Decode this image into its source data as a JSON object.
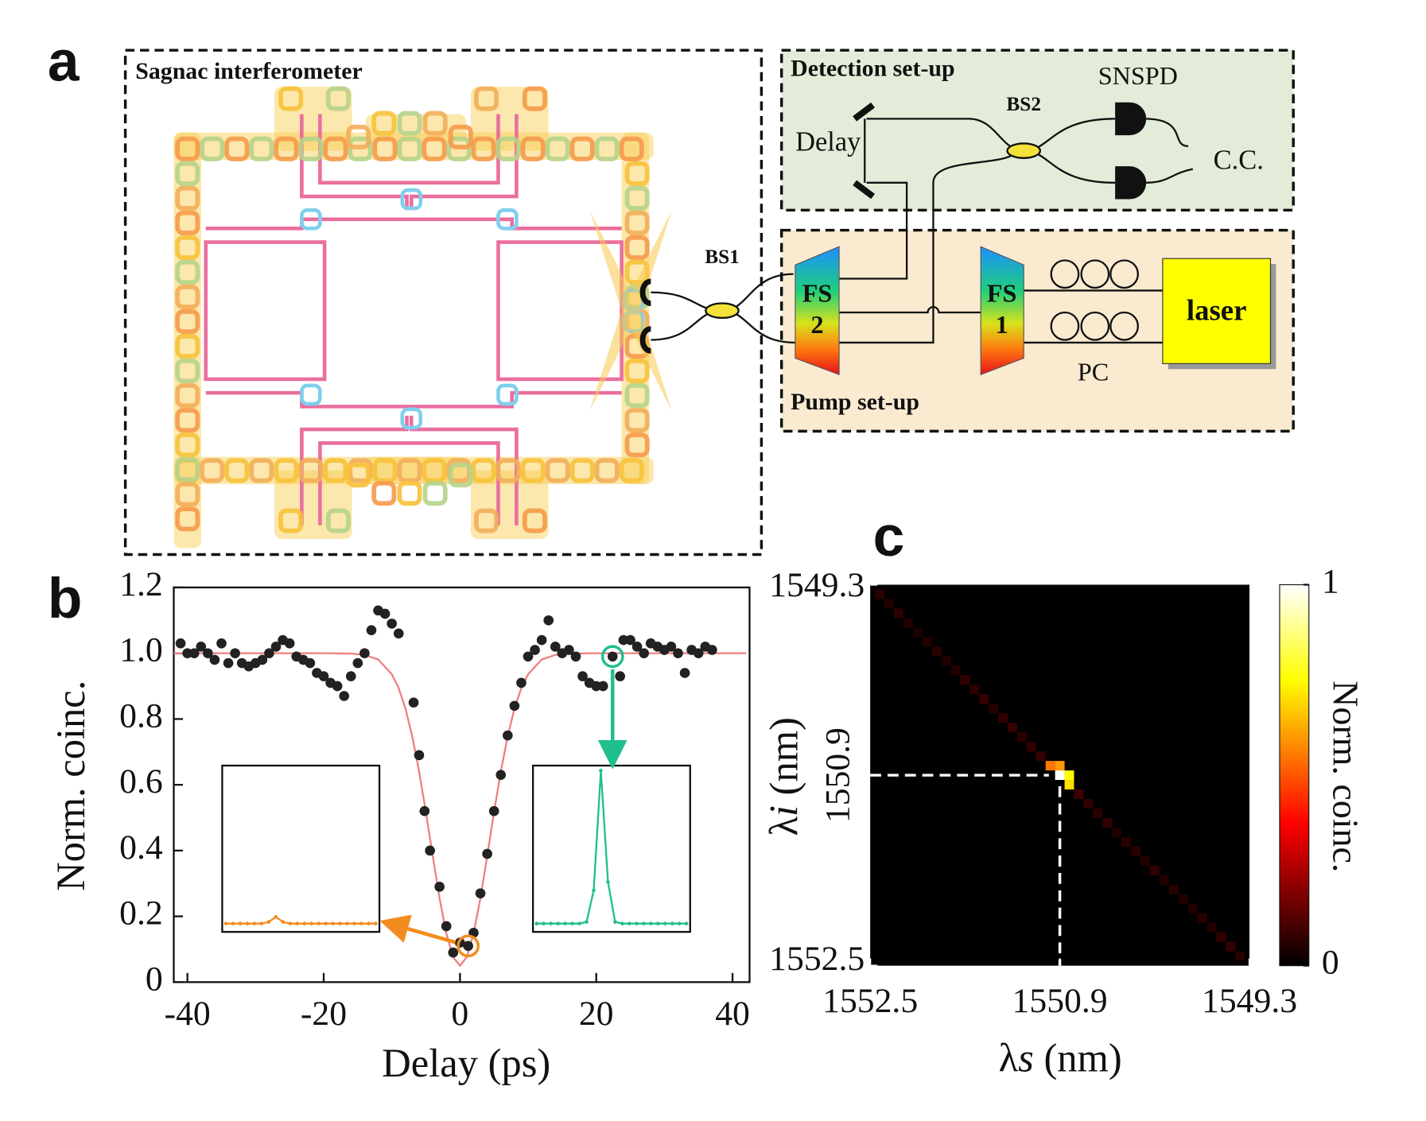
{
  "panel_labels": [
    "a",
    "b",
    "c"
  ],
  "diagram": {
    "sagnac_title": "Sagnac interferometer",
    "detection_title": "Detection set-up",
    "pump_title": "Pump set-up",
    "delay": "Delay",
    "bs2": "BS2",
    "snspd": "SNSPD",
    "cc": "C.C.",
    "bs1": "BS1",
    "fs2": [
      "FS",
      "2"
    ],
    "fs1": [
      "FS",
      "1"
    ],
    "laser": "laser",
    "pc": "PC"
  },
  "chart_data": [
    {
      "type": "scatter",
      "x_label": "Delay (ps)",
      "y_label": "Norm. coinc.",
      "xlim": [
        -42,
        42.5
      ],
      "ylim": [
        0,
        1.2
      ],
      "xticks": [
        -40,
        -20,
        0,
        20,
        40
      ],
      "yticks": [
        0,
        0.2,
        0.4,
        0.6,
        0.8,
        {
          "value": 1,
          "label": "1.0"
        },
        1.2
      ],
      "points": {
        "color": "#222222",
        "x": [
          -41,
          -40,
          -39,
          -38,
          -37,
          -36,
          -35,
          -34,
          -33,
          -32,
          -31,
          -30,
          -29,
          -28,
          -27,
          -26,
          -25,
          -24,
          -23,
          -22,
          -21,
          -20,
          -19,
          -18,
          -17,
          -16,
          -15,
          -14,
          -13,
          -12,
          -11,
          -10,
          -9,
          -6.8,
          -6,
          -5.2,
          -4.4,
          -3,
          -2,
          -1,
          0,
          1.2,
          2,
          3,
          4,
          5,
          6,
          7,
          8,
          9,
          10,
          11,
          12,
          13,
          14,
          15,
          16,
          17,
          18,
          19,
          20,
          21,
          22.4,
          23.5,
          24,
          25,
          26,
          27,
          28,
          29,
          30,
          31,
          32,
          33,
          34,
          35,
          36,
          37
        ],
        "values": [
          1.03,
          1.0,
          1.0,
          1.02,
          1.0,
          0.98,
          1.03,
          0.97,
          1.0,
          0.97,
          0.96,
          0.97,
          0.98,
          1.0,
          1.02,
          1.04,
          1.03,
          0.99,
          0.98,
          0.97,
          0.94,
          0.93,
          0.91,
          0.9,
          0.87,
          0.93,
          0.97,
          1.0,
          1.07,
          1.13,
          1.12,
          1.09,
          1.06,
          0.85,
          0.69,
          0.52,
          0.4,
          0.29,
          0.17,
          0.09,
          0.12,
          0.11,
          0.15,
          0.27,
          0.39,
          0.52,
          0.63,
          0.75,
          0.84,
          0.91,
          0.99,
          1.01,
          1.04,
          1.1,
          1.02,
          1.0,
          1.01,
          0.99,
          0.93,
          0.91,
          0.9,
          0.9,
          0.99,
          0.93,
          1.04,
          1.04,
          1.02,
          1.0,
          1.03,
          1.02,
          1.01,
          1.02,
          1.0,
          0.94,
          1.01,
          1.0,
          1.02,
          1.01
        ]
      },
      "fit": {
        "color": "#ee7f7f",
        "x": [
          -42,
          -30,
          -20,
          -16,
          -14,
          -12,
          -10,
          -9,
          -8,
          -7,
          -6,
          -5,
          -4,
          -3,
          -2,
          -1,
          0,
          1,
          2,
          3,
          4,
          5,
          6,
          7,
          8,
          9,
          10,
          12,
          14,
          16,
          20,
          30,
          42
        ],
        "values": [
          1,
          1,
          1,
          0.999,
          0.995,
          0.981,
          0.936,
          0.894,
          0.832,
          0.747,
          0.641,
          0.517,
          0.384,
          0.255,
          0.148,
          0.076,
          0.05,
          0.076,
          0.148,
          0.255,
          0.384,
          0.517,
          0.641,
          0.747,
          0.832,
          0.894,
          0.936,
          0.981,
          0.995,
          0.999,
          1,
          1,
          1
        ]
      },
      "insets": [
        {
          "color": "#f28c1e",
          "delay": 1.2,
          "ylim": [
            0,
            1
          ],
          "values": [
            0.05,
            0.05,
            0.05,
            0.05,
            0.05,
            0.05,
            0.06,
            0.09,
            0.06,
            0.05,
            0.05,
            0.05,
            0.05,
            0.05,
            0.05,
            0.05,
            0.05,
            0.05,
            0.05,
            0.05,
            0.05,
            0.05
          ]
        },
        {
          "color": "#1fbf8f",
          "delay": 22.4,
          "ylim": [
            0,
            1
          ],
          "values": [
            0.05,
            0.05,
            0.05,
            0.05,
            0.05,
            0.05,
            0.05,
            0.06,
            0.25,
            0.97,
            0.3,
            0.06,
            0.05,
            0.05,
            0.05,
            0.05,
            0.05,
            0.05,
            0.05,
            0.05,
            0.05,
            0.05
          ]
        }
      ]
    },
    {
      "type": "heatmap",
      "x_label": [
        "λ",
        "s",
        " (nm)"
      ],
      "y_label": [
        "λ",
        "i",
        " (nm)"
      ],
      "colorbar_label": "Norm. coinc.",
      "colormap": "hot",
      "clim": [
        0,
        1
      ],
      "cticks": [
        0,
        1
      ],
      "xlim": [
        1552.5,
        1549.3
      ],
      "ylim": [
        1552.5,
        1549.3
      ],
      "xticks": [
        1552.5,
        1550.9,
        1549.3
      ],
      "yticks": [
        1552.5,
        1550.9,
        1549.3
      ],
      "crosshair": [
        1550.9,
        1550.9
      ],
      "cells": {
        "x": [
          1552.42,
          1552.34,
          1552.26,
          1552.18,
          1552.1,
          1552.02,
          1551.94,
          1551.86,
          1551.78,
          1551.7,
          1551.62,
          1551.54,
          1551.46,
          1551.38,
          1551.3,
          1551.22,
          1551.14,
          1551.06,
          1550.98,
          1550.9,
          1550.82,
          1550.74,
          1550.66,
          1550.58,
          1550.5,
          1550.42,
          1550.34,
          1550.26,
          1550.18,
          1550.1,
          1550.02,
          1549.94,
          1549.86,
          1549.78,
          1549.7,
          1549.62,
          1549.54,
          1549.46,
          1549.38,
          1550.9,
          1550.82
        ],
        "y": [
          1549.38,
          1549.46,
          1549.54,
          1549.62,
          1549.7,
          1549.78,
          1549.86,
          1549.94,
          1550.02,
          1550.1,
          1550.18,
          1550.26,
          1550.34,
          1550.42,
          1550.5,
          1550.58,
          1550.66,
          1550.74,
          1550.82,
          1550.9,
          1550.98,
          1551.06,
          1551.14,
          1551.22,
          1551.3,
          1551.38,
          1551.46,
          1551.54,
          1551.62,
          1551.7,
          1551.78,
          1551.86,
          1551.94,
          1552.02,
          1552.1,
          1552.18,
          1552.26,
          1552.34,
          1552.42,
          1550.82,
          1550.9
        ],
        "values": [
          0.06,
          0.05,
          0.07,
          0.05,
          0.04,
          0.05,
          0.06,
          0.05,
          0.05,
          0.07,
          0.06,
          0.08,
          0.06,
          0.07,
          0.08,
          0.06,
          0.07,
          0.08,
          0.55,
          1,
          0.7,
          0.09,
          0.07,
          0.06,
          0.07,
          0.05,
          0.06,
          0.06,
          0.05,
          0.07,
          0.05,
          0.06,
          0.05,
          0.05,
          0.06,
          0.05,
          0.07,
          0.08,
          0.06,
          0.6,
          0.75
        ]
      }
    }
  ]
}
